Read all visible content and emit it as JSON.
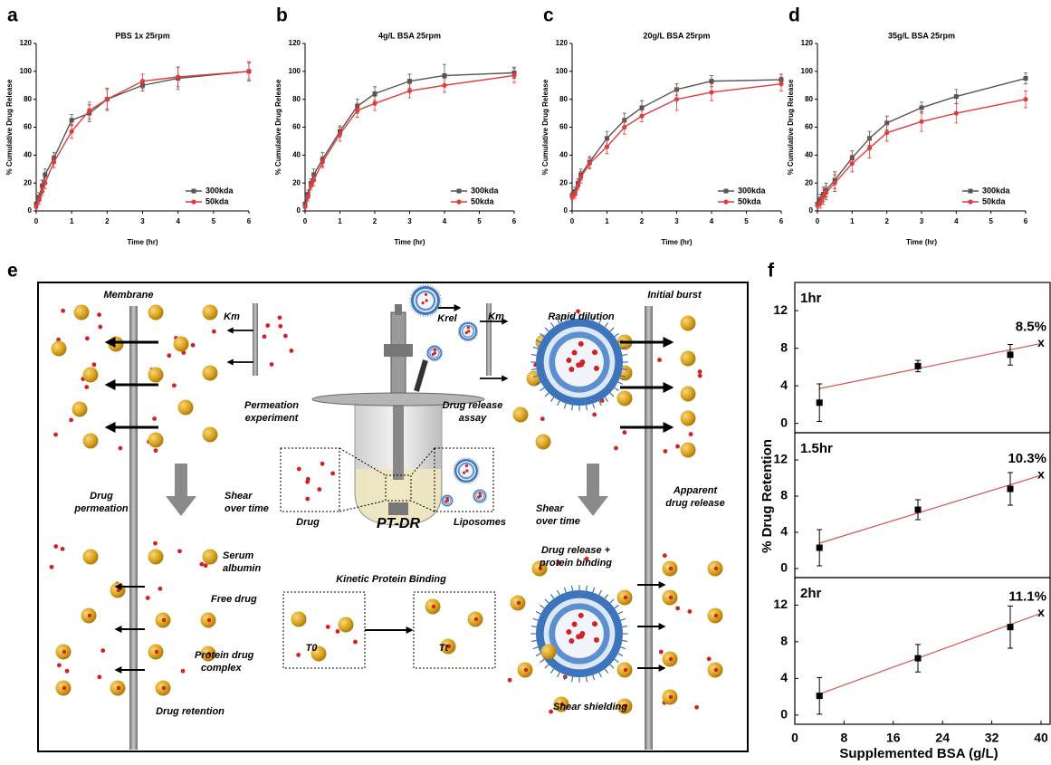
{
  "chart_data": [
    {
      "type": "line",
      "panel": "a",
      "title": "PBS 1x 25rpm",
      "xlabel": "Time (hr)",
      "ylabel": "% Cumulative Drug Release",
      "x": [
        0,
        0.083,
        0.167,
        0.25,
        0.5,
        1,
        1.5,
        2,
        3,
        4,
        6
      ],
      "xlim": [
        0,
        6
      ],
      "xticks": [
        0,
        1,
        2,
        3,
        4,
        5,
        6
      ],
      "ylim": [
        0,
        120
      ],
      "yticks": [
        0,
        20,
        40,
        60,
        80,
        100,
        120
      ],
      "legend": "lower right",
      "series": [
        {
          "name": "300kda",
          "color": "#555555",
          "marker": "square",
          "values": [
            5,
            10,
            18,
            26,
            38,
            65,
            70,
            80,
            90,
            95,
            100
          ],
          "errors": [
            1,
            3,
            4,
            4,
            4,
            4,
            6,
            8,
            4,
            8,
            6
          ]
        },
        {
          "name": "50kda",
          "color": "#e03c3c",
          "marker": "circle",
          "values": [
            3,
            8,
            14,
            20,
            35,
            57,
            72,
            80,
            93,
            96,
            100
          ],
          "errors": [
            1,
            3,
            3,
            4,
            4,
            5,
            6,
            7,
            5,
            7,
            7
          ]
        }
      ]
    },
    {
      "type": "line",
      "panel": "b",
      "title": "4g/L BSA 25rpm",
      "xlabel": "Time (hr)",
      "ylabel": "% Cumulative Drug Release",
      "x": [
        0,
        0.083,
        0.167,
        0.25,
        0.5,
        1,
        1.5,
        2,
        3,
        4,
        6
      ],
      "xlim": [
        0,
        6
      ],
      "xticks": [
        0,
        1,
        2,
        3,
        4,
        5,
        6
      ],
      "ylim": [
        0,
        120
      ],
      "yticks": [
        0,
        20,
        40,
        60,
        80,
        100,
        120
      ],
      "legend": "lower right",
      "series": [
        {
          "name": "300kda",
          "color": "#555555",
          "marker": "square",
          "values": [
            5,
            12,
            20,
            26,
            37,
            57,
            75,
            84,
            93,
            97,
            99
          ],
          "errors": [
            1,
            3,
            3,
            4,
            5,
            4,
            5,
            5,
            5,
            8,
            4
          ]
        },
        {
          "name": "50kda",
          "color": "#e03c3c",
          "marker": "circle",
          "values": [
            3,
            10,
            18,
            22,
            35,
            55,
            72,
            77,
            86,
            90,
            97
          ],
          "errors": [
            1,
            3,
            3,
            4,
            4,
            5,
            5,
            5,
            5,
            5,
            5
          ]
        }
      ]
    },
    {
      "type": "line",
      "panel": "c",
      "title": "20g/L BSA 25rpm",
      "xlabel": "Time (hr)",
      "ylabel": "% Cumulative Drug Release",
      "x": [
        0,
        0.083,
        0.167,
        0.25,
        0.5,
        1,
        1.5,
        2,
        3,
        4,
        6
      ],
      "xlim": [
        0,
        6
      ],
      "xticks": [
        0,
        1,
        2,
        3,
        4,
        5,
        6
      ],
      "ylim": [
        0,
        120
      ],
      "yticks": [
        0,
        20,
        40,
        60,
        80,
        100,
        120
      ],
      "legend": "lower right",
      "series": [
        {
          "name": "300kda",
          "color": "#555555",
          "marker": "square",
          "values": [
            11,
            14,
            20,
            26,
            35,
            52,
            65,
            74,
            87,
            93,
            94
          ],
          "errors": [
            2,
            3,
            3,
            4,
            4,
            5,
            5,
            5,
            4,
            4,
            4
          ]
        },
        {
          "name": "50kda",
          "color": "#e03c3c",
          "marker": "circle",
          "values": [
            10,
            12,
            18,
            24,
            34,
            46,
            60,
            68,
            80,
            85,
            91
          ],
          "errors": [
            2,
            3,
            3,
            4,
            4,
            5,
            5,
            4,
            8,
            6,
            5
          ]
        }
      ]
    },
    {
      "type": "line",
      "panel": "d",
      "title": "35g/L BSA 25rpm",
      "xlabel": "Time (hr)",
      "ylabel": "% Cumulative Drug Release",
      "x": [
        0,
        0.083,
        0.167,
        0.25,
        0.5,
        1,
        1.5,
        2,
        3,
        4,
        6
      ],
      "xlim": [
        0,
        6
      ],
      "xticks": [
        0,
        1,
        2,
        3,
        4,
        5,
        6
      ],
      "ylim": [
        0,
        120
      ],
      "yticks": [
        0,
        20,
        40,
        60,
        80,
        100,
        120
      ],
      "legend": "lower right",
      "series": [
        {
          "name": "300kda",
          "color": "#555555",
          "marker": "square",
          "values": [
            5,
            8,
            12,
            15,
            22,
            38,
            52,
            63,
            74,
            82,
            95
          ],
          "errors": [
            1,
            4,
            5,
            5,
            6,
            5,
            5,
            5,
            4,
            5,
            4
          ]
        },
        {
          "name": "50kda",
          "color": "#e03c3c",
          "marker": "circle",
          "values": [
            4,
            6,
            10,
            13,
            20,
            34,
            45,
            56,
            64,
            70,
            80
          ],
          "errors": [
            1,
            4,
            5,
            5,
            6,
            6,
            7,
            6,
            7,
            7,
            6
          ]
        }
      ]
    },
    {
      "type": "scatter",
      "panel": "f",
      "title": "1hr",
      "x": [
        4,
        20,
        35
      ],
      "xlim": [
        0,
        40
      ],
      "ylim": [
        -1,
        15
      ],
      "yticks": [
        0,
        4,
        8,
        12
      ],
      "series": [
        {
          "color": "#000000",
          "marker": "square",
          "values": [
            2.2,
            6.1,
            7.3
          ],
          "errors": [
            2,
            0.6,
            1.1
          ]
        }
      ],
      "fit": {
        "x": [
          4,
          40
        ],
        "values": [
          3.7,
          8.5
        ],
        "color": "#d9534f"
      },
      "prediction": {
        "x": 40,
        "value": 8.5,
        "label": "8.5%",
        "marker": "x"
      }
    },
    {
      "type": "scatter",
      "title": "1.5hr",
      "ylabel": "% Drug Retention",
      "x": [
        4,
        20,
        35
      ],
      "xlim": [
        0,
        40
      ],
      "ylim": [
        -1,
        15
      ],
      "yticks": [
        0,
        4,
        8,
        12
      ],
      "series": [
        {
          "color": "#000000",
          "marker": "square",
          "values": [
            2.3,
            6.5,
            8.8
          ],
          "errors": [
            2,
            1.1,
            1.8
          ]
        }
      ],
      "fit": {
        "x": [
          4,
          40
        ],
        "values": [
          2.8,
          10.3
        ],
        "color": "#d9534f"
      },
      "prediction": {
        "x": 40,
        "value": 10.3,
        "label": "10.3%",
        "marker": "x"
      }
    },
    {
      "type": "scatter",
      "title": "2hr",
      "xlabel": "Supplemented BSA (g/L)",
      "x": [
        4,
        20,
        35
      ],
      "xlim": [
        0,
        40
      ],
      "xticks": [
        0,
        8,
        16,
        24,
        32,
        40
      ],
      "ylim": [
        -1,
        15
      ],
      "yticks": [
        0,
        4,
        8,
        12
      ],
      "series": [
        {
          "color": "#000000",
          "marker": "square",
          "values": [
            2.1,
            6.2,
            9.6
          ],
          "errors": [
            2,
            1.5,
            2.3
          ]
        }
      ],
      "fit": {
        "x": [
          4,
          40
        ],
        "values": [
          2.3,
          11.1
        ],
        "color": "#d9534f"
      },
      "prediction": {
        "x": 40,
        "value": 11.1,
        "label": "11.1%",
        "marker": "x"
      }
    }
  ],
  "diagram": {
    "panel": "e",
    "labels": {
      "membrane": "Membrane",
      "drug_permeation": [
        "Drug",
        "permeation"
      ],
      "shear_left": [
        "Shear",
        "over time"
      ],
      "serum_albumin": [
        "Serum",
        "albumin"
      ],
      "free_drug": "Free drug",
      "protein_drug_complex": [
        "Protein drug",
        "complex"
      ],
      "drug_retention": "Drug retention",
      "km_left": "Km",
      "permeation_experiment": [
        "Permeation",
        "experiment"
      ],
      "krel": "Krel",
      "km_right": "Km",
      "drug_release_assay": [
        "Drug release",
        "assay"
      ],
      "drug": "Drug",
      "pt_dr": "PT-DR",
      "liposomes": "Liposomes",
      "kinetic_protein_binding": "Kinetic Protein Binding",
      "t0": "T0",
      "tt": "Tt",
      "rapid_dilution": "Rapid dilution",
      "initial_burst": "Initial burst",
      "shear_right": [
        "Shear",
        "over time"
      ],
      "apparent_drug_release": [
        "Apparent",
        "drug release"
      ],
      "drug_release_protein_binding": [
        "Drug release +",
        "protein binding"
      ],
      "shear_shielding": "Shear shielding"
    }
  }
}
